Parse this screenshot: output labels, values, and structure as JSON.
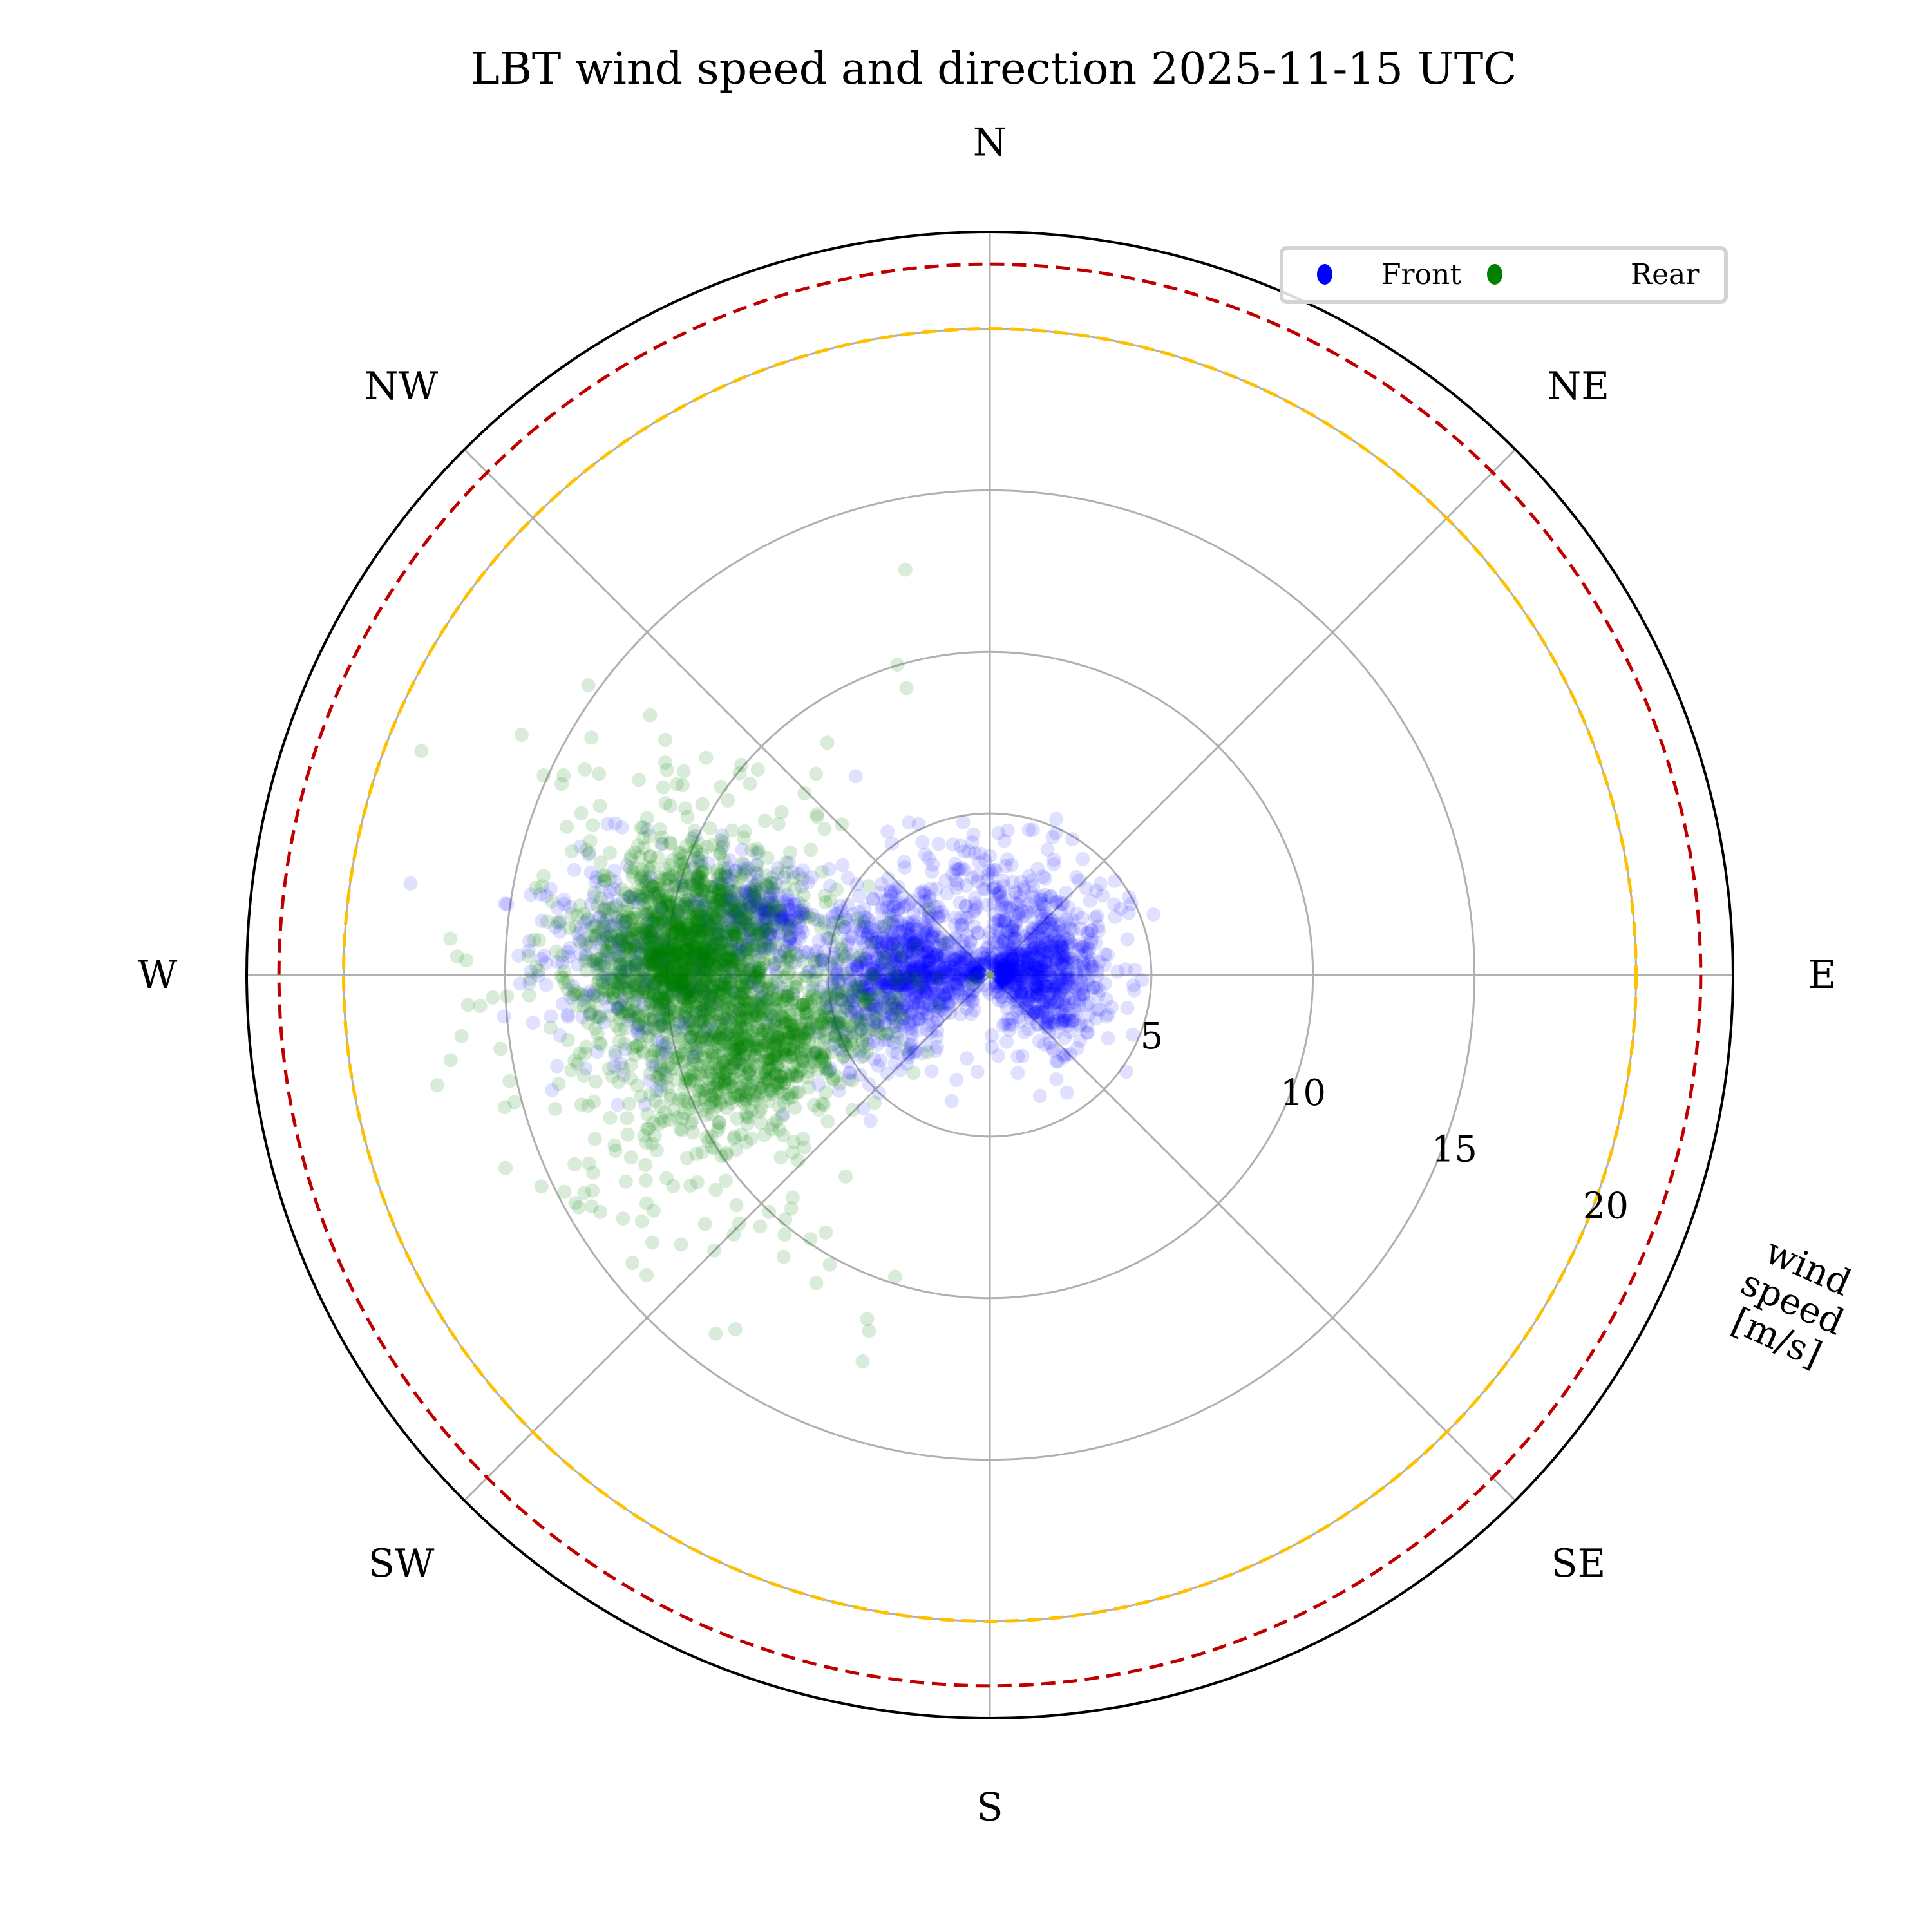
{
  "chart_data": {
    "type": "scatter",
    "projection": "polar",
    "title": "LBT wind speed and direction 2025-11-15 UTC",
    "theta_zero": "N",
    "theta_direction": "clockwise",
    "direction_labels": [
      {
        "label": "N",
        "deg": 0
      },
      {
        "label": "NE",
        "deg": 45
      },
      {
        "label": "E",
        "deg": 90
      },
      {
        "label": "SE",
        "deg": 135
      },
      {
        "label": "S",
        "deg": 180
      },
      {
        "label": "SW",
        "deg": 225
      },
      {
        "label": "W",
        "deg": 270
      },
      {
        "label": "NW",
        "deg": 315
      }
    ],
    "radial_axis": {
      "label": [
        "wind",
        "speed",
        "[m/s]"
      ],
      "ticks": [
        5,
        10,
        15,
        20
      ],
      "tick_labels": [
        "5",
        "10",
        "15",
        "20"
      ],
      "rlim": [
        0,
        23
      ],
      "label_angle_deg": 112.5
    },
    "grid": true,
    "reference_lines": [
      {
        "name": "yellow-limit",
        "r": 20,
        "style": "dashed",
        "color": "#ffc000"
      },
      {
        "name": "red-limit",
        "r": 22,
        "style": "dashed",
        "color": "#c00000"
      }
    ],
    "legend": {
      "placement": "top-right",
      "entries": [
        {
          "label": "Front",
          "color": "#0000ff"
        },
        {
          "label": "Rear",
          "color": "#008000"
        }
      ]
    },
    "series": [
      {
        "name": "Front",
        "color": "#0000ff",
        "alpha": 0.04,
        "clusters": [
          {
            "dir_deg": 85,
            "speed": 1.8,
            "spread_dir_deg": 35,
            "spread_speed": 1.1,
            "weight": 0.28
          },
          {
            "dir_deg": 270,
            "speed": 2.8,
            "spread_dir_deg": 22,
            "spread_speed": 1.4,
            "weight": 0.34
          },
          {
            "dir_deg": 285,
            "speed": 7.5,
            "spread_dir_deg": 5,
            "spread_speed": 0.9,
            "weight": 0.1
          },
          {
            "dir_deg": 272,
            "speed": 10.5,
            "spread_dir_deg": 8,
            "spread_speed": 2.0,
            "weight": 0.16
          },
          {
            "dir_deg": 0,
            "speed": 2.5,
            "spread_dir_deg": 60,
            "spread_speed": 1.3,
            "weight": 0.12
          }
        ]
      },
      {
        "name": "Rear",
        "color": "#008000",
        "alpha": 0.05,
        "clusters": [
          {
            "dir_deg": 272,
            "speed": 9.6,
            "spread_dir_deg": 6,
            "spread_speed": 1.4,
            "weight": 0.36
          },
          {
            "dir_deg": 253,
            "speed": 7.6,
            "spread_dir_deg": 8,
            "spread_speed": 1.6,
            "weight": 0.26
          },
          {
            "dir_deg": 285,
            "speed": 9.4,
            "spread_dir_deg": 6,
            "spread_speed": 1.3,
            "weight": 0.12
          },
          {
            "dir_deg": 265,
            "speed": 9.0,
            "spread_dir_deg": 22,
            "spread_speed": 3.0,
            "weight": 0.26
          }
        ]
      }
    ]
  }
}
